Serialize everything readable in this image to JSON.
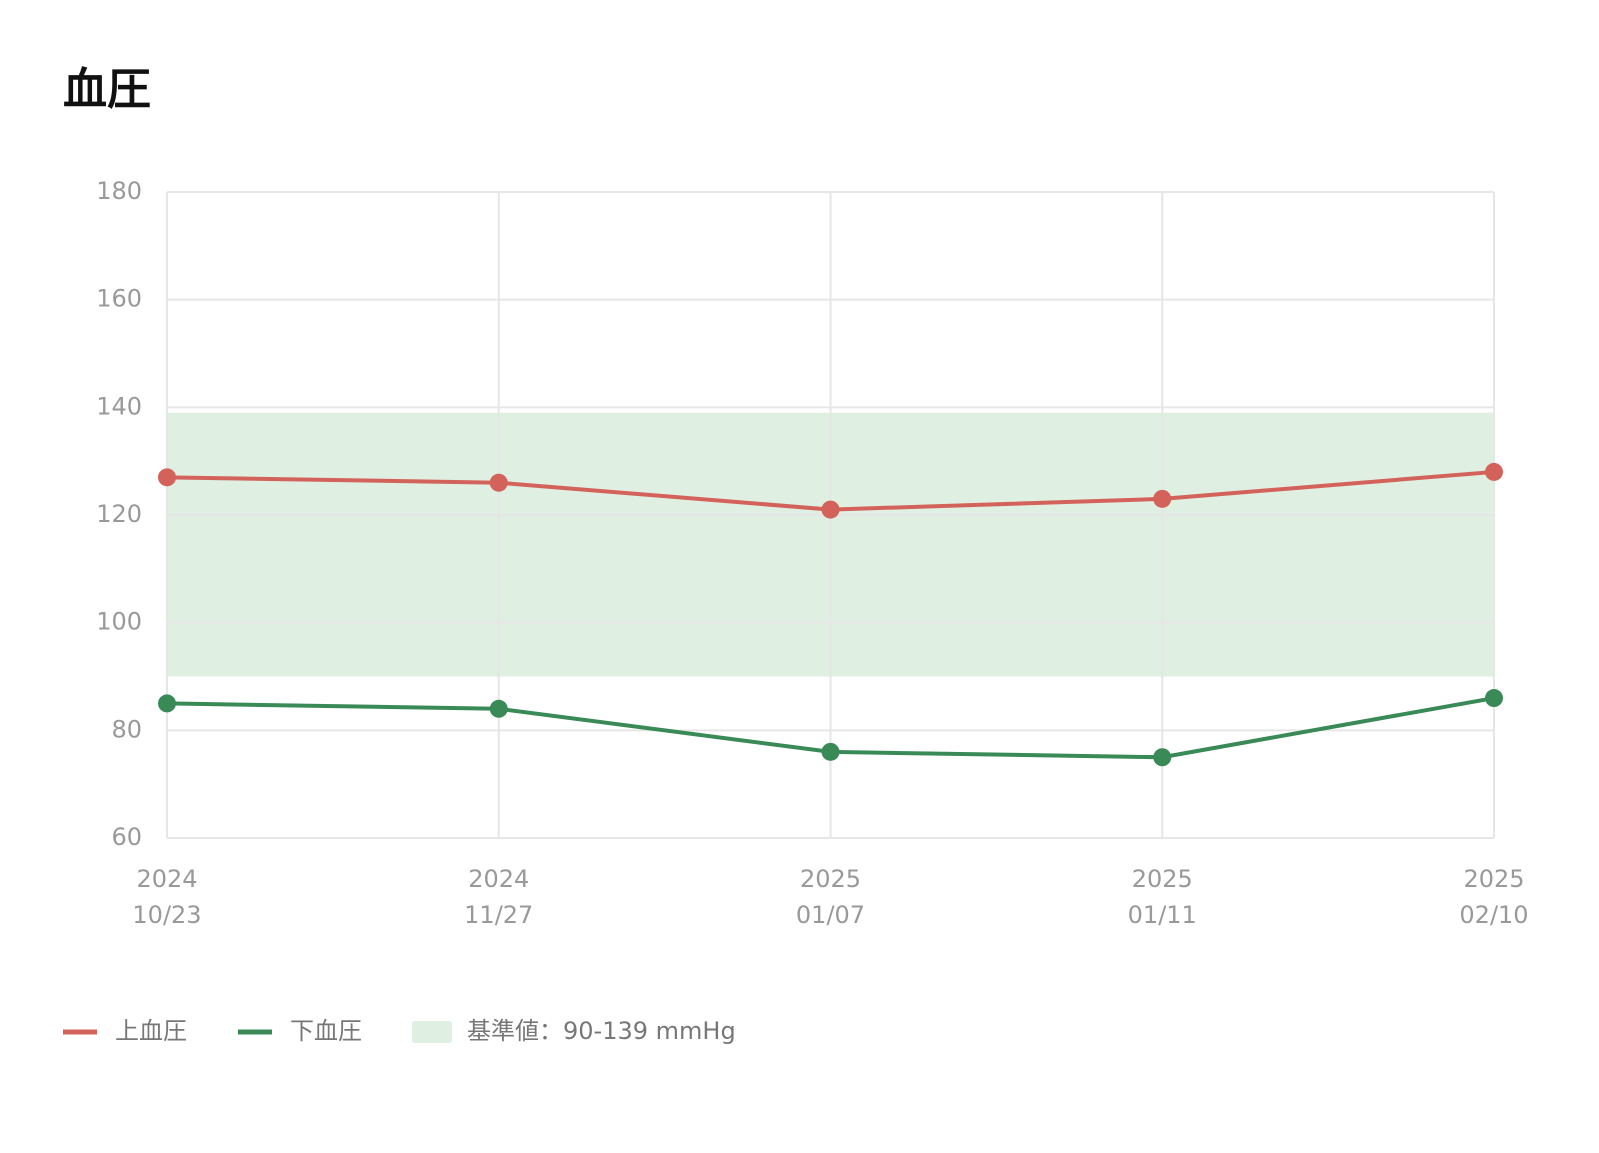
{
  "chart_data": {
    "type": "line",
    "title": "血圧",
    "categories": [
      [
        "2024",
        "10/23"
      ],
      [
        "2024",
        "11/27"
      ],
      [
        "2025",
        "01/07"
      ],
      [
        "2025",
        "01/11"
      ],
      [
        "2025",
        "02/10"
      ]
    ],
    "series": [
      {
        "name": "上血圧",
        "color": "#d2625a",
        "values": [
          127,
          126,
          121,
          123,
          128
        ]
      },
      {
        "name": "下血圧",
        "color": "#3a8a57",
        "values": [
          85,
          84,
          76,
          75,
          86
        ]
      }
    ],
    "reference_band": {
      "range": [
        90,
        139
      ],
      "label": "基準値：90-139 mmHg",
      "color": "#dfefe2"
    },
    "ylim": [
      60,
      180
    ],
    "yticks": [
      60,
      80,
      100,
      120,
      140,
      160,
      180
    ],
    "grid": true
  }
}
